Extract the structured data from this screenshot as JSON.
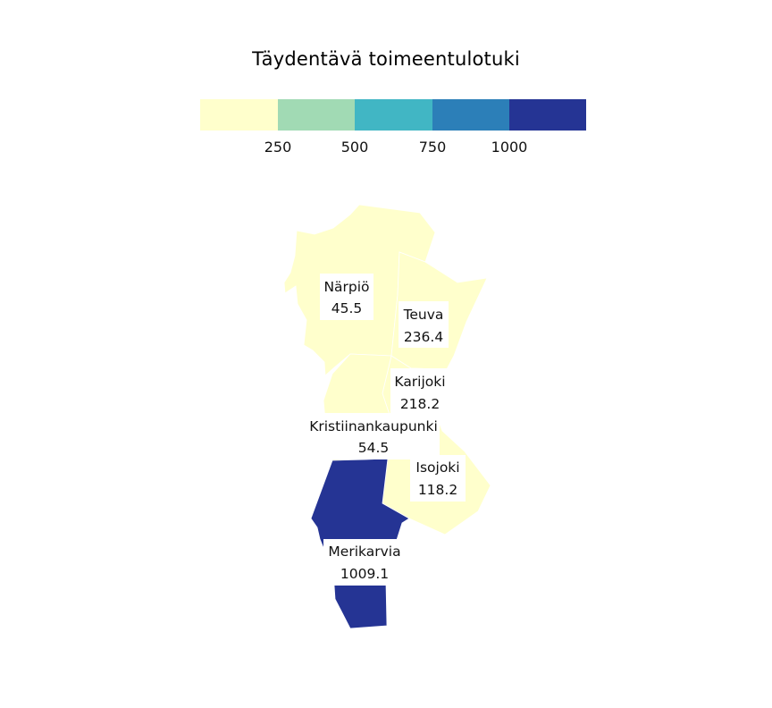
{
  "title": "Täydentävä toimeentulotuki",
  "legend": {
    "colors": [
      "#ffffcc",
      "#a1dab4",
      "#41b6c4",
      "#2c7fb8",
      "#253494"
    ],
    "ticks": [
      "250",
      "500",
      "750",
      "1000"
    ]
  },
  "regions": [
    {
      "name": "Närpiö",
      "value": "45.5",
      "color": "#ffffcc"
    },
    {
      "name": "Teuva",
      "value": "236.4",
      "color": "#ffffcc"
    },
    {
      "name": "Karijoki",
      "value": "218.2",
      "color": "#ffffcc"
    },
    {
      "name": "Kristiinankaupunki",
      "value": "54.5",
      "color": "#ffffcc"
    },
    {
      "name": "Isojoki",
      "value": "118.2",
      "color": "#ffffcc"
    },
    {
      "name": "Merikarvia",
      "value": "1009.1",
      "color": "#253494"
    }
  ]
}
